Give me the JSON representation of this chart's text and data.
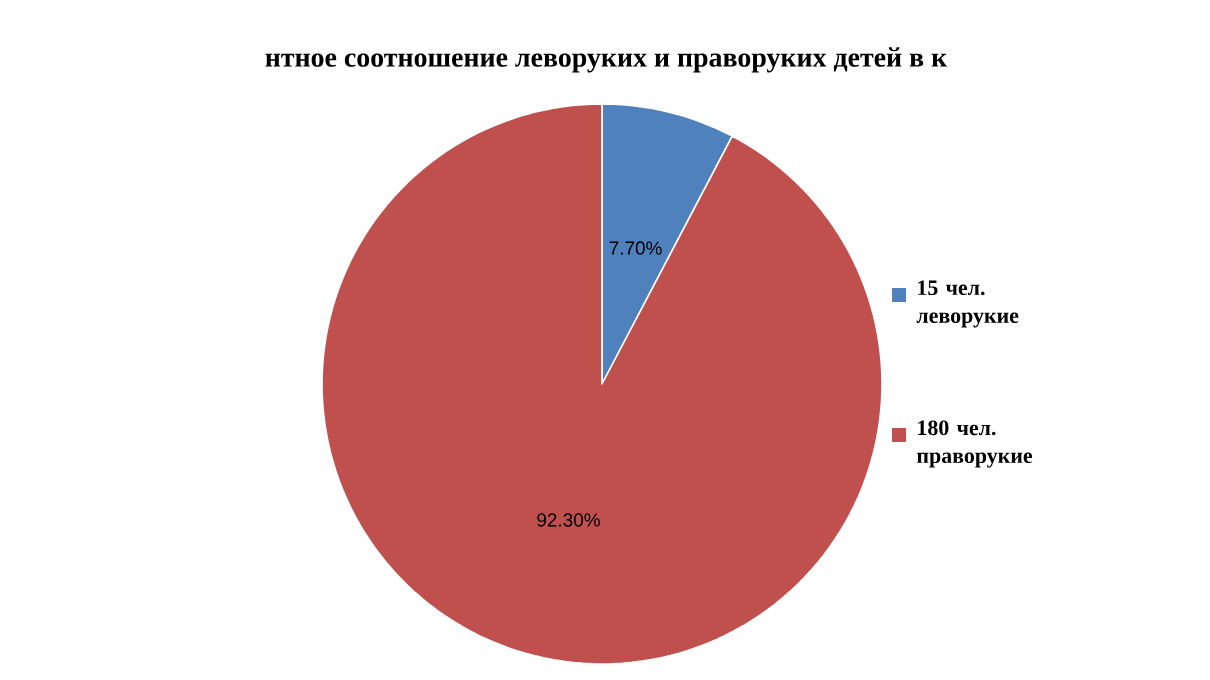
{
  "chart_data": {
    "type": "pie",
    "title": "нтное соотношение леворуких и праворуких детей в к",
    "categories": [
      "15 чел. леворукие",
      "180 чел. праворукие"
    ],
    "values": [
      7.7,
      92.3
    ],
    "value_labels": [
      "7.70%",
      "92.30%"
    ],
    "colors": [
      "#4f81bd",
      "#c0504d"
    ],
    "legend": "right"
  }
}
